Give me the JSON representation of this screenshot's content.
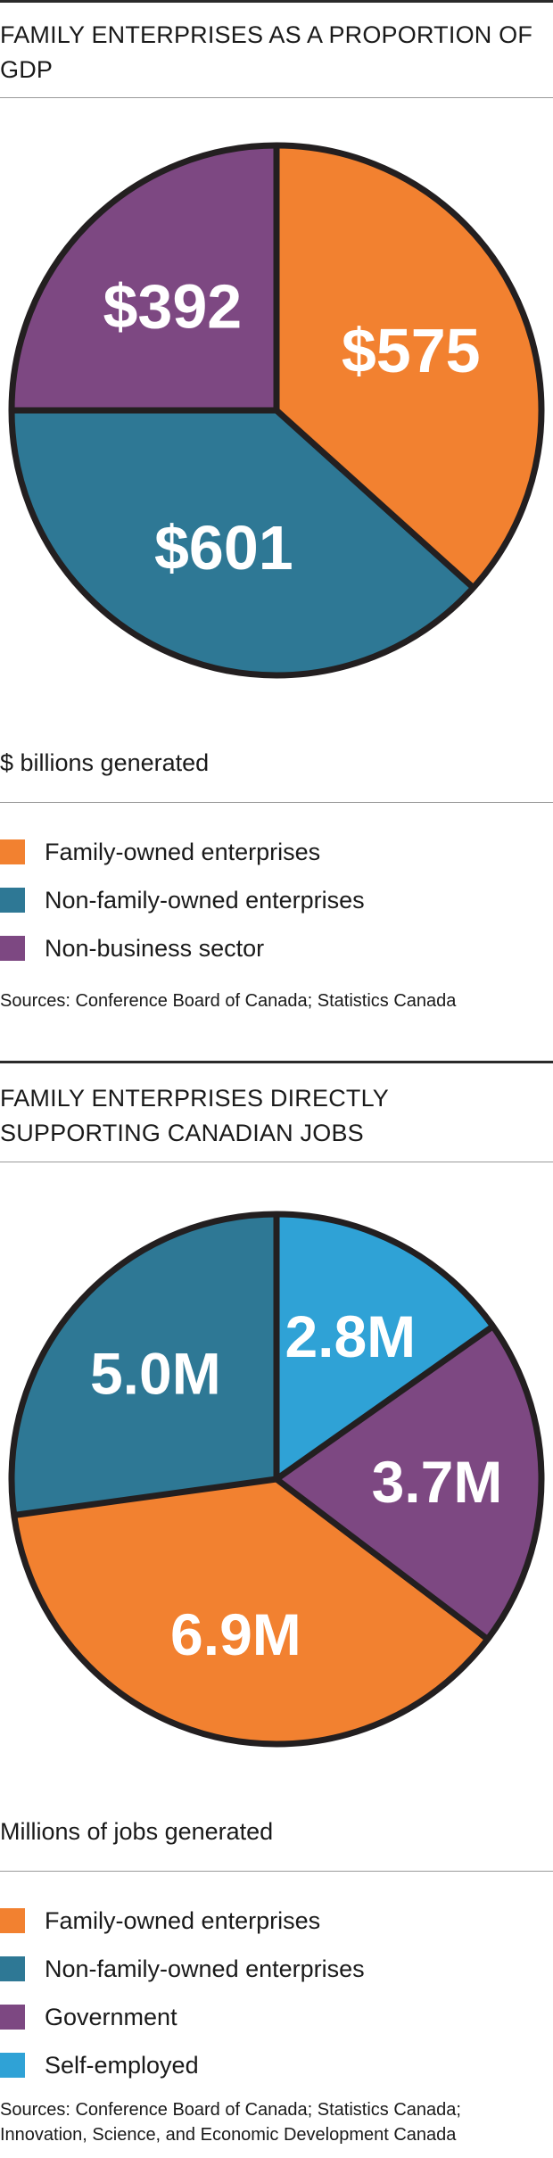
{
  "chart_data": [
    {
      "type": "pie",
      "title": "FAMILY ENTERPRISES AS A PROPORTION OF GDP",
      "unit_label": "$ billions generated",
      "slices": [
        {
          "name": "Family-owned enterprises",
          "value": 575,
          "label": "$575",
          "color": "#F28130"
        },
        {
          "name": "Non-family-owned enterprises",
          "value": 601,
          "label": "$601",
          "color": "#2E7895"
        },
        {
          "name": "Non-business sector",
          "value": 392,
          "label": "$392",
          "color": "#7D4882"
        }
      ],
      "source": "Sources: Conference Board of Canada; Statistics Canada"
    },
    {
      "type": "pie",
      "title": "FAMILY ENTERPRISES DIRECTLY SUPPORTING CANADIAN JOBS",
      "unit_label": "Millions of jobs generated",
      "slices": [
        {
          "name": "Self-employed",
          "value": 2.8,
          "label": "2.8M",
          "color": "#2FA2D6"
        },
        {
          "name": "Government",
          "value": 3.7,
          "label": "3.7M",
          "color": "#7D4882"
        },
        {
          "name": "Family-owned enterprises",
          "value": 6.9,
          "label": "6.9M",
          "color": "#F28130"
        },
        {
          "name": "Non-family-owned enterprises",
          "value": 5.0,
          "label": "5.0M",
          "color": "#2E7895"
        }
      ],
      "legend_order": [
        "Family-owned enterprises",
        "Non-family-owned enterprises",
        "Government",
        "Self-employed"
      ],
      "source": "Sources: Conference Board of Canada; Statistics Canada; Innovation, Science, and Economic Development Canada"
    }
  ]
}
